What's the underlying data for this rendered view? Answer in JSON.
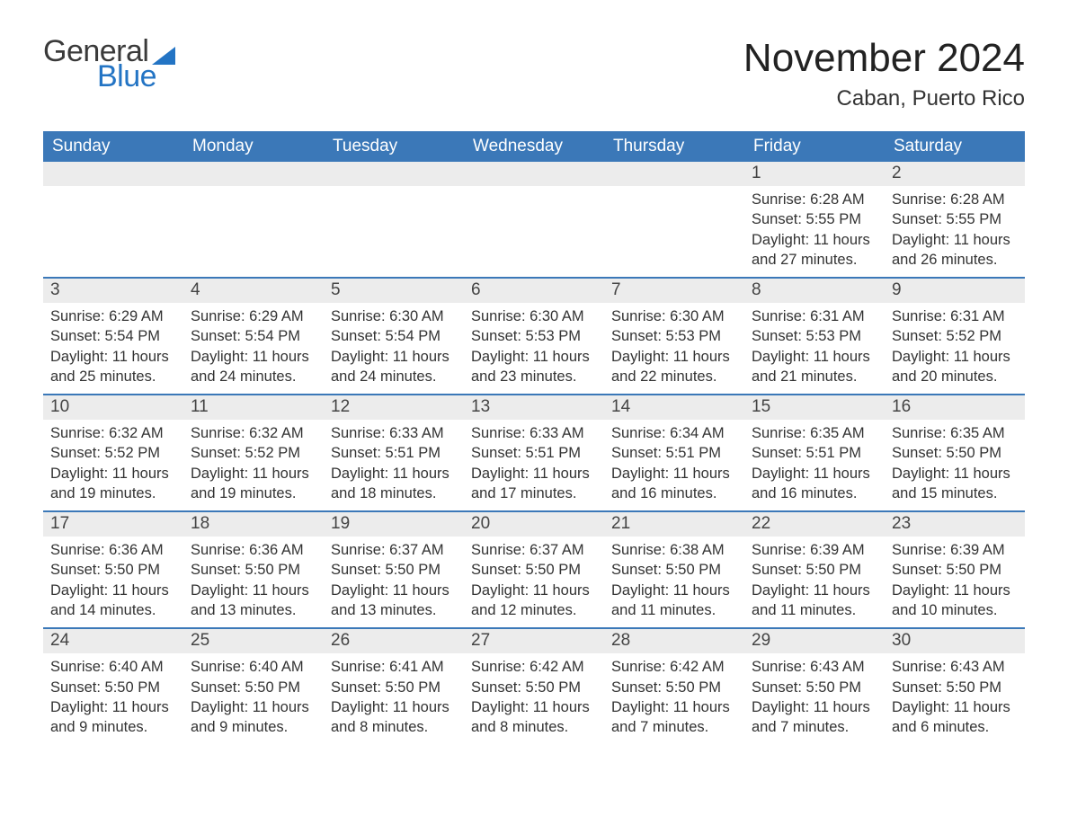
{
  "brand": {
    "part1": "General",
    "part2": "Blue"
  },
  "title": "November 2024",
  "location": "Caban, Puerto Rico",
  "colors": {
    "accent": "#3b78b8",
    "header_text": "#ffffff",
    "day_header_bg": "#ececec",
    "day_border": "#3b78b8",
    "text": "#333333",
    "background": "#ffffff",
    "logo_blue": "#2374c4"
  },
  "typography": {
    "title_fontsize": 44,
    "location_fontsize": 24,
    "weekday_fontsize": 19,
    "daynum_fontsize": 19,
    "body_fontsize": 16
  },
  "calendar": {
    "type": "calendar-table",
    "weekdays": [
      "Sunday",
      "Monday",
      "Tuesday",
      "Wednesday",
      "Thursday",
      "Friday",
      "Saturday"
    ],
    "weeks": [
      [
        null,
        null,
        null,
        null,
        null,
        {
          "n": "1",
          "sunrise": "Sunrise: 6:28 AM",
          "sunset": "Sunset: 5:55 PM",
          "daylight": "Daylight: 11 hours and 27 minutes."
        },
        {
          "n": "2",
          "sunrise": "Sunrise: 6:28 AM",
          "sunset": "Sunset: 5:55 PM",
          "daylight": "Daylight: 11 hours and 26 minutes."
        }
      ],
      [
        {
          "n": "3",
          "sunrise": "Sunrise: 6:29 AM",
          "sunset": "Sunset: 5:54 PM",
          "daylight": "Daylight: 11 hours and 25 minutes."
        },
        {
          "n": "4",
          "sunrise": "Sunrise: 6:29 AM",
          "sunset": "Sunset: 5:54 PM",
          "daylight": "Daylight: 11 hours and 24 minutes."
        },
        {
          "n": "5",
          "sunrise": "Sunrise: 6:30 AM",
          "sunset": "Sunset: 5:54 PM",
          "daylight": "Daylight: 11 hours and 24 minutes."
        },
        {
          "n": "6",
          "sunrise": "Sunrise: 6:30 AM",
          "sunset": "Sunset: 5:53 PM",
          "daylight": "Daylight: 11 hours and 23 minutes."
        },
        {
          "n": "7",
          "sunrise": "Sunrise: 6:30 AM",
          "sunset": "Sunset: 5:53 PM",
          "daylight": "Daylight: 11 hours and 22 minutes."
        },
        {
          "n": "8",
          "sunrise": "Sunrise: 6:31 AM",
          "sunset": "Sunset: 5:53 PM",
          "daylight": "Daylight: 11 hours and 21 minutes."
        },
        {
          "n": "9",
          "sunrise": "Sunrise: 6:31 AM",
          "sunset": "Sunset: 5:52 PM",
          "daylight": "Daylight: 11 hours and 20 minutes."
        }
      ],
      [
        {
          "n": "10",
          "sunrise": "Sunrise: 6:32 AM",
          "sunset": "Sunset: 5:52 PM",
          "daylight": "Daylight: 11 hours and 19 minutes."
        },
        {
          "n": "11",
          "sunrise": "Sunrise: 6:32 AM",
          "sunset": "Sunset: 5:52 PM",
          "daylight": "Daylight: 11 hours and 19 minutes."
        },
        {
          "n": "12",
          "sunrise": "Sunrise: 6:33 AM",
          "sunset": "Sunset: 5:51 PM",
          "daylight": "Daylight: 11 hours and 18 minutes."
        },
        {
          "n": "13",
          "sunrise": "Sunrise: 6:33 AM",
          "sunset": "Sunset: 5:51 PM",
          "daylight": "Daylight: 11 hours and 17 minutes."
        },
        {
          "n": "14",
          "sunrise": "Sunrise: 6:34 AM",
          "sunset": "Sunset: 5:51 PM",
          "daylight": "Daylight: 11 hours and 16 minutes."
        },
        {
          "n": "15",
          "sunrise": "Sunrise: 6:35 AM",
          "sunset": "Sunset: 5:51 PM",
          "daylight": "Daylight: 11 hours and 16 minutes."
        },
        {
          "n": "16",
          "sunrise": "Sunrise: 6:35 AM",
          "sunset": "Sunset: 5:50 PM",
          "daylight": "Daylight: 11 hours and 15 minutes."
        }
      ],
      [
        {
          "n": "17",
          "sunrise": "Sunrise: 6:36 AM",
          "sunset": "Sunset: 5:50 PM",
          "daylight": "Daylight: 11 hours and 14 minutes."
        },
        {
          "n": "18",
          "sunrise": "Sunrise: 6:36 AM",
          "sunset": "Sunset: 5:50 PM",
          "daylight": "Daylight: 11 hours and 13 minutes."
        },
        {
          "n": "19",
          "sunrise": "Sunrise: 6:37 AM",
          "sunset": "Sunset: 5:50 PM",
          "daylight": "Daylight: 11 hours and 13 minutes."
        },
        {
          "n": "20",
          "sunrise": "Sunrise: 6:37 AM",
          "sunset": "Sunset: 5:50 PM",
          "daylight": "Daylight: 11 hours and 12 minutes."
        },
        {
          "n": "21",
          "sunrise": "Sunrise: 6:38 AM",
          "sunset": "Sunset: 5:50 PM",
          "daylight": "Daylight: 11 hours and 11 minutes."
        },
        {
          "n": "22",
          "sunrise": "Sunrise: 6:39 AM",
          "sunset": "Sunset: 5:50 PM",
          "daylight": "Daylight: 11 hours and 11 minutes."
        },
        {
          "n": "23",
          "sunrise": "Sunrise: 6:39 AM",
          "sunset": "Sunset: 5:50 PM",
          "daylight": "Daylight: 11 hours and 10 minutes."
        }
      ],
      [
        {
          "n": "24",
          "sunrise": "Sunrise: 6:40 AM",
          "sunset": "Sunset: 5:50 PM",
          "daylight": "Daylight: 11 hours and 9 minutes."
        },
        {
          "n": "25",
          "sunrise": "Sunrise: 6:40 AM",
          "sunset": "Sunset: 5:50 PM",
          "daylight": "Daylight: 11 hours and 9 minutes."
        },
        {
          "n": "26",
          "sunrise": "Sunrise: 6:41 AM",
          "sunset": "Sunset: 5:50 PM",
          "daylight": "Daylight: 11 hours and 8 minutes."
        },
        {
          "n": "27",
          "sunrise": "Sunrise: 6:42 AM",
          "sunset": "Sunset: 5:50 PM",
          "daylight": "Daylight: 11 hours and 8 minutes."
        },
        {
          "n": "28",
          "sunrise": "Sunrise: 6:42 AM",
          "sunset": "Sunset: 5:50 PM",
          "daylight": "Daylight: 11 hours and 7 minutes."
        },
        {
          "n": "29",
          "sunrise": "Sunrise: 6:43 AM",
          "sunset": "Sunset: 5:50 PM",
          "daylight": "Daylight: 11 hours and 7 minutes."
        },
        {
          "n": "30",
          "sunrise": "Sunrise: 6:43 AM",
          "sunset": "Sunset: 5:50 PM",
          "daylight": "Daylight: 11 hours and 6 minutes."
        }
      ]
    ]
  }
}
